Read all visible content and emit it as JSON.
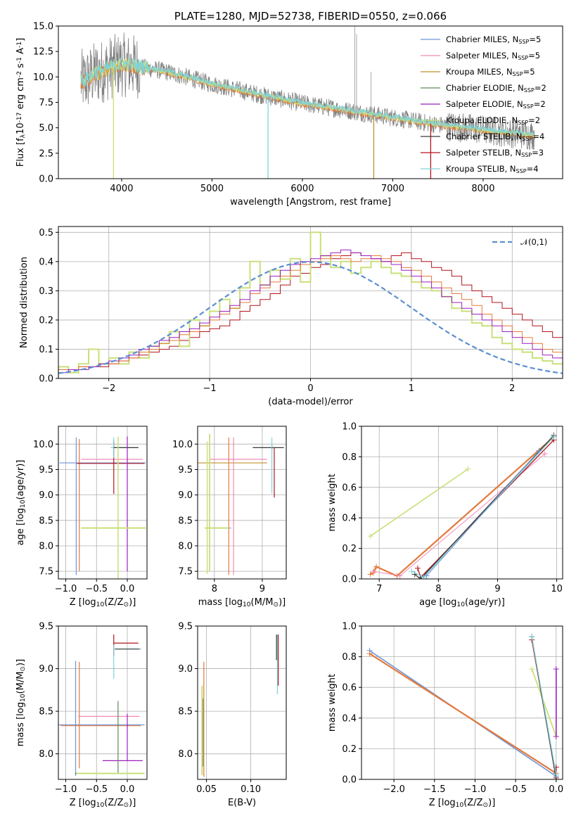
{
  "colors": {
    "chabrier_miles": "#6f95d8",
    "salpeter_miles": "#f08ab4",
    "kroupa_miles": "#c0902a",
    "chabrier_elodie": "#5e8a5a",
    "salpeter_elodie": "#9b1fc0",
    "kroupa_elodie": "#c8e07a",
    "chabrier_stelib": "#3a3a3a",
    "salpeter_stelib": "#b3151e",
    "kroupa_stelib": "#7fd3d8",
    "miles_line": "#e37a3c",
    "data": "#808080"
  },
  "chart_data": [
    {
      "id": "spectrum",
      "type": "line",
      "title": "PLATE=1280, MJD=52738, FIBERID=0550, z=0.066",
      "xlabel": "wavelength [Angstrom, rest frame]",
      "ylabel": "Flux [f$_\\lambda$10$^{-17}$ erg cm$^{-2}$ s$^{-1}$ A$^{-1}$]",
      "xlim": [
        3300,
        8880
      ],
      "ylim": [
        0,
        15
      ],
      "xticks": [
        4000,
        5000,
        6000,
        7000,
        8000
      ],
      "yticks": [
        "0.0",
        "2.5",
        "5.0",
        "7.5",
        "10.0",
        "12.5",
        "15.0"
      ],
      "legend": {
        "placement": "top-right",
        "entries": [
          {
            "text": "Chabrier MILES, N$_{SSP}$=5",
            "color": "chabrier_miles"
          },
          {
            "text": "Salpeter MILES, N$_{SSP}$=5",
            "color": "salpeter_miles"
          },
          {
            "text": "Kroupa MILES, N$_{SSP}$=5",
            "color": "kroupa_miles"
          },
          {
            "text": "Chabrier ELODIE, N$_{SSP}$=2",
            "color": "chabrier_elodie"
          },
          {
            "text": "Salpeter ELODIE, N$_{SSP}$=2",
            "color": "salpeter_elodie"
          },
          {
            "text": "Kroupa ELODIE, N$_{SSP}$=2",
            "color": "kroupa_elodie"
          },
          {
            "text": "Chabrier STELIB, N$_{SSP}$=4",
            "color": "chabrier_stelib"
          },
          {
            "text": "Salpeter STELIB, N$_{SSP}$=3",
            "color": "salpeter_stelib"
          },
          {
            "text": "Kroupa STELIB, N$_{SSP}$=4",
            "color": "kroupa_stelib"
          }
        ]
      },
      "continuum": {
        "x": [
          3600,
          3700,
          3800,
          3900,
          4000,
          4200,
          4500,
          5000,
          5500,
          6000,
          6500,
          7000,
          7500,
          8000,
          8500
        ],
        "y": [
          9.6,
          10.3,
          10.6,
          11.0,
          11.2,
          11.0,
          10.5,
          9.3,
          8.3,
          7.4,
          6.7,
          6.0,
          5.3,
          4.8,
          4.3
        ]
      },
      "dropouts": [
        {
          "x": 3910,
          "y": 0,
          "color": "kroupa_elodie"
        },
        {
          "x": 5620,
          "y": 0,
          "color": "kroupa_stelib"
        },
        {
          "x": 6790,
          "y": 0,
          "color": "kroupa_miles"
        },
        {
          "x": 7420,
          "y": 0,
          "color": "salpeter_stelib"
        }
      ],
      "data_spikes": [
        {
          "x": 6580,
          "y": 15
        },
        {
          "x": 6600,
          "y": 14.2
        },
        {
          "x": 6760,
          "y": 10.5
        }
      ]
    },
    {
      "id": "residuals",
      "type": "histogram",
      "xlabel": "(data-model)/error",
      "ylabel": "Normed distribution",
      "xlim": [
        -2.5,
        2.5
      ],
      "ylim": [
        0,
        0.52
      ],
      "xticks": [
        "−2",
        "−1",
        "0",
        "1",
        "2"
      ],
      "yticks": [
        "0.0",
        "0.1",
        "0.2",
        "0.3",
        "0.4",
        "0.5"
      ],
      "grid": true,
      "legend": {
        "placement": "top-right",
        "entries": [
          {
            "text": "$\\mathcal{N}(0,1)$",
            "style": "dashed",
            "color": "#5b8fd1"
          }
        ]
      },
      "bin_width": 0.1,
      "bin_start": -2.5,
      "series": [
        {
          "color": "salpeter_stelib",
          "values": [
            0.03,
            0.03,
            0.04,
            0.04,
            0.04,
            0.05,
            0.06,
            0.07,
            0.08,
            0.09,
            0.1,
            0.11,
            0.13,
            0.14,
            0.16,
            0.17,
            0.18,
            0.2,
            0.23,
            0.25,
            0.27,
            0.29,
            0.32,
            0.35,
            0.36,
            0.38,
            0.39,
            0.41,
            0.42,
            0.43,
            0.42,
            0.41,
            0.4,
            0.42,
            0.43,
            0.41,
            0.4,
            0.38,
            0.37,
            0.35,
            0.32,
            0.3,
            0.28,
            0.26,
            0.24,
            0.22,
            0.2,
            0.18,
            0.16,
            0.14
          ]
        },
        {
          "color": "kroupa_elodie",
          "values": [
            0.04,
            0.02,
            0.05,
            0.1,
            0.05,
            0.07,
            0.05,
            0.09,
            0.07,
            0.11,
            0.12,
            0.16,
            0.11,
            0.2,
            0.18,
            0.23,
            0.27,
            0.24,
            0.31,
            0.4,
            0.32,
            0.37,
            0.34,
            0.41,
            0.33,
            0.5,
            0.42,
            0.38,
            0.4,
            0.36,
            0.38,
            0.4,
            0.38,
            0.36,
            0.35,
            0.33,
            0.31,
            0.3,
            0.28,
            0.24,
            0.23,
            0.19,
            0.18,
            0.14,
            0.12,
            0.1,
            0.09,
            0.07,
            0.06,
            0.05
          ]
        },
        {
          "color": "miles_line",
          "values": [
            0.03,
            0.03,
            0.04,
            0.04,
            0.05,
            0.05,
            0.06,
            0.07,
            0.09,
            0.1,
            0.12,
            0.13,
            0.15,
            0.16,
            0.18,
            0.2,
            0.22,
            0.24,
            0.26,
            0.29,
            0.31,
            0.33,
            0.35,
            0.37,
            0.39,
            0.4,
            0.41,
            0.42,
            0.41,
            0.4,
            0.41,
            0.42,
            0.41,
            0.4,
            0.38,
            0.37,
            0.35,
            0.33,
            0.31,
            0.29,
            0.27,
            0.25,
            0.22,
            0.2,
            0.18,
            0.16,
            0.14,
            0.12,
            0.1,
            0.09
          ]
        },
        {
          "color": "salpeter_elodie",
          "values": [
            0.02,
            0.03,
            0.03,
            0.04,
            0.05,
            0.06,
            0.07,
            0.08,
            0.1,
            0.11,
            0.13,
            0.14,
            0.16,
            0.17,
            0.19,
            0.21,
            0.23,
            0.25,
            0.27,
            0.3,
            0.32,
            0.35,
            0.37,
            0.39,
            0.4,
            0.41,
            0.42,
            0.43,
            0.44,
            0.43,
            0.42,
            0.41,
            0.4,
            0.39,
            0.37,
            0.35,
            0.33,
            0.31,
            0.28,
            0.26,
            0.24,
            0.22,
            0.2,
            0.18,
            0.16,
            0.14,
            0.12,
            0.1,
            0.08,
            0.07
          ]
        }
      ],
      "normal_curve": {
        "mean": 0,
        "sigma": 1
      }
    },
    {
      "id": "age_vs_Z",
      "type": "scatter",
      "xlabel": "Z [log$_{10}$(Z/Z$_\\odot$)]",
      "ylabel": "age  [log$_{10}$(age/yr)]",
      "xlim": [
        -1.12,
        0.32
      ],
      "ylim": [
        7.35,
        10.35
      ],
      "xticks": [
        "−1.0",
        "−0.5",
        "0.0"
      ],
      "yticks": [
        "7.5",
        "8.0",
        "8.5",
        "9.0",
        "9.5",
        "10.0"
      ]
    },
    {
      "id": "age_vs_mass",
      "type": "scatter",
      "xlabel": "mass [log$_{10}$(M/M$_\\odot$)]",
      "ylim": [
        7.35,
        10.35
      ],
      "xlim": [
        7.65,
        9.5
      ],
      "xticks": [
        "8",
        "9"
      ],
      "yticks": [
        "7.5",
        "8.0",
        "8.5",
        "9.0",
        "9.5",
        "10.0"
      ]
    },
    {
      "id": "weight_vs_age",
      "type": "line",
      "xlabel": "age  [log$_{10}$(age/yr)]",
      "ylabel": "mass weight",
      "xlim": [
        6.7,
        10.1
      ],
      "ylim": [
        0,
        1
      ],
      "xticks": [
        "7",
        "8",
        "9",
        "10"
      ],
      "yticks": [
        "0.0",
        "0.2",
        "0.4",
        "0.6",
        "0.8",
        "1.0"
      ],
      "grid": true
    },
    {
      "id": "mass_vs_Z",
      "type": "scatter",
      "xlabel": "Z [log$_{10}$(Z/Z$_\\odot$)]",
      "ylabel": "mass [log$_{10}$(M/M$_\\odot$)]",
      "xlim": [
        -1.12,
        0.32
      ],
      "ylim": [
        7.7,
        9.5
      ],
      "xticks": [
        "−1.0",
        "−0.5",
        "0.0"
      ],
      "yticks": [
        "8.0",
        "8.5",
        "9.0",
        "9.5"
      ]
    },
    {
      "id": "mass_vs_ebv",
      "type": "scatter",
      "xlabel": "E(B-V)",
      "xlim": [
        0.04,
        0.14
      ],
      "ylim": [
        7.7,
        9.5
      ],
      "xticks": [
        "0.05",
        "0.10"
      ],
      "yticks": [
        "8.0",
        "8.5",
        "9.0",
        "9.5"
      ]
    },
    {
      "id": "weight_vs_Z",
      "type": "line",
      "xlabel": "Z [log$_{10}$(Z/Z$_\\odot$)]",
      "ylabel": "mass weight",
      "xlim": [
        -2.4,
        0.08
      ],
      "ylim": [
        0,
        1
      ],
      "xticks": [
        "−2.0",
        "−1.5",
        "−1.0",
        "−0.5",
        "0.0"
      ],
      "yticks": [
        "0.0",
        "0.2",
        "0.4",
        "0.6",
        "0.8",
        "1.0"
      ],
      "grid": true
    }
  ]
}
